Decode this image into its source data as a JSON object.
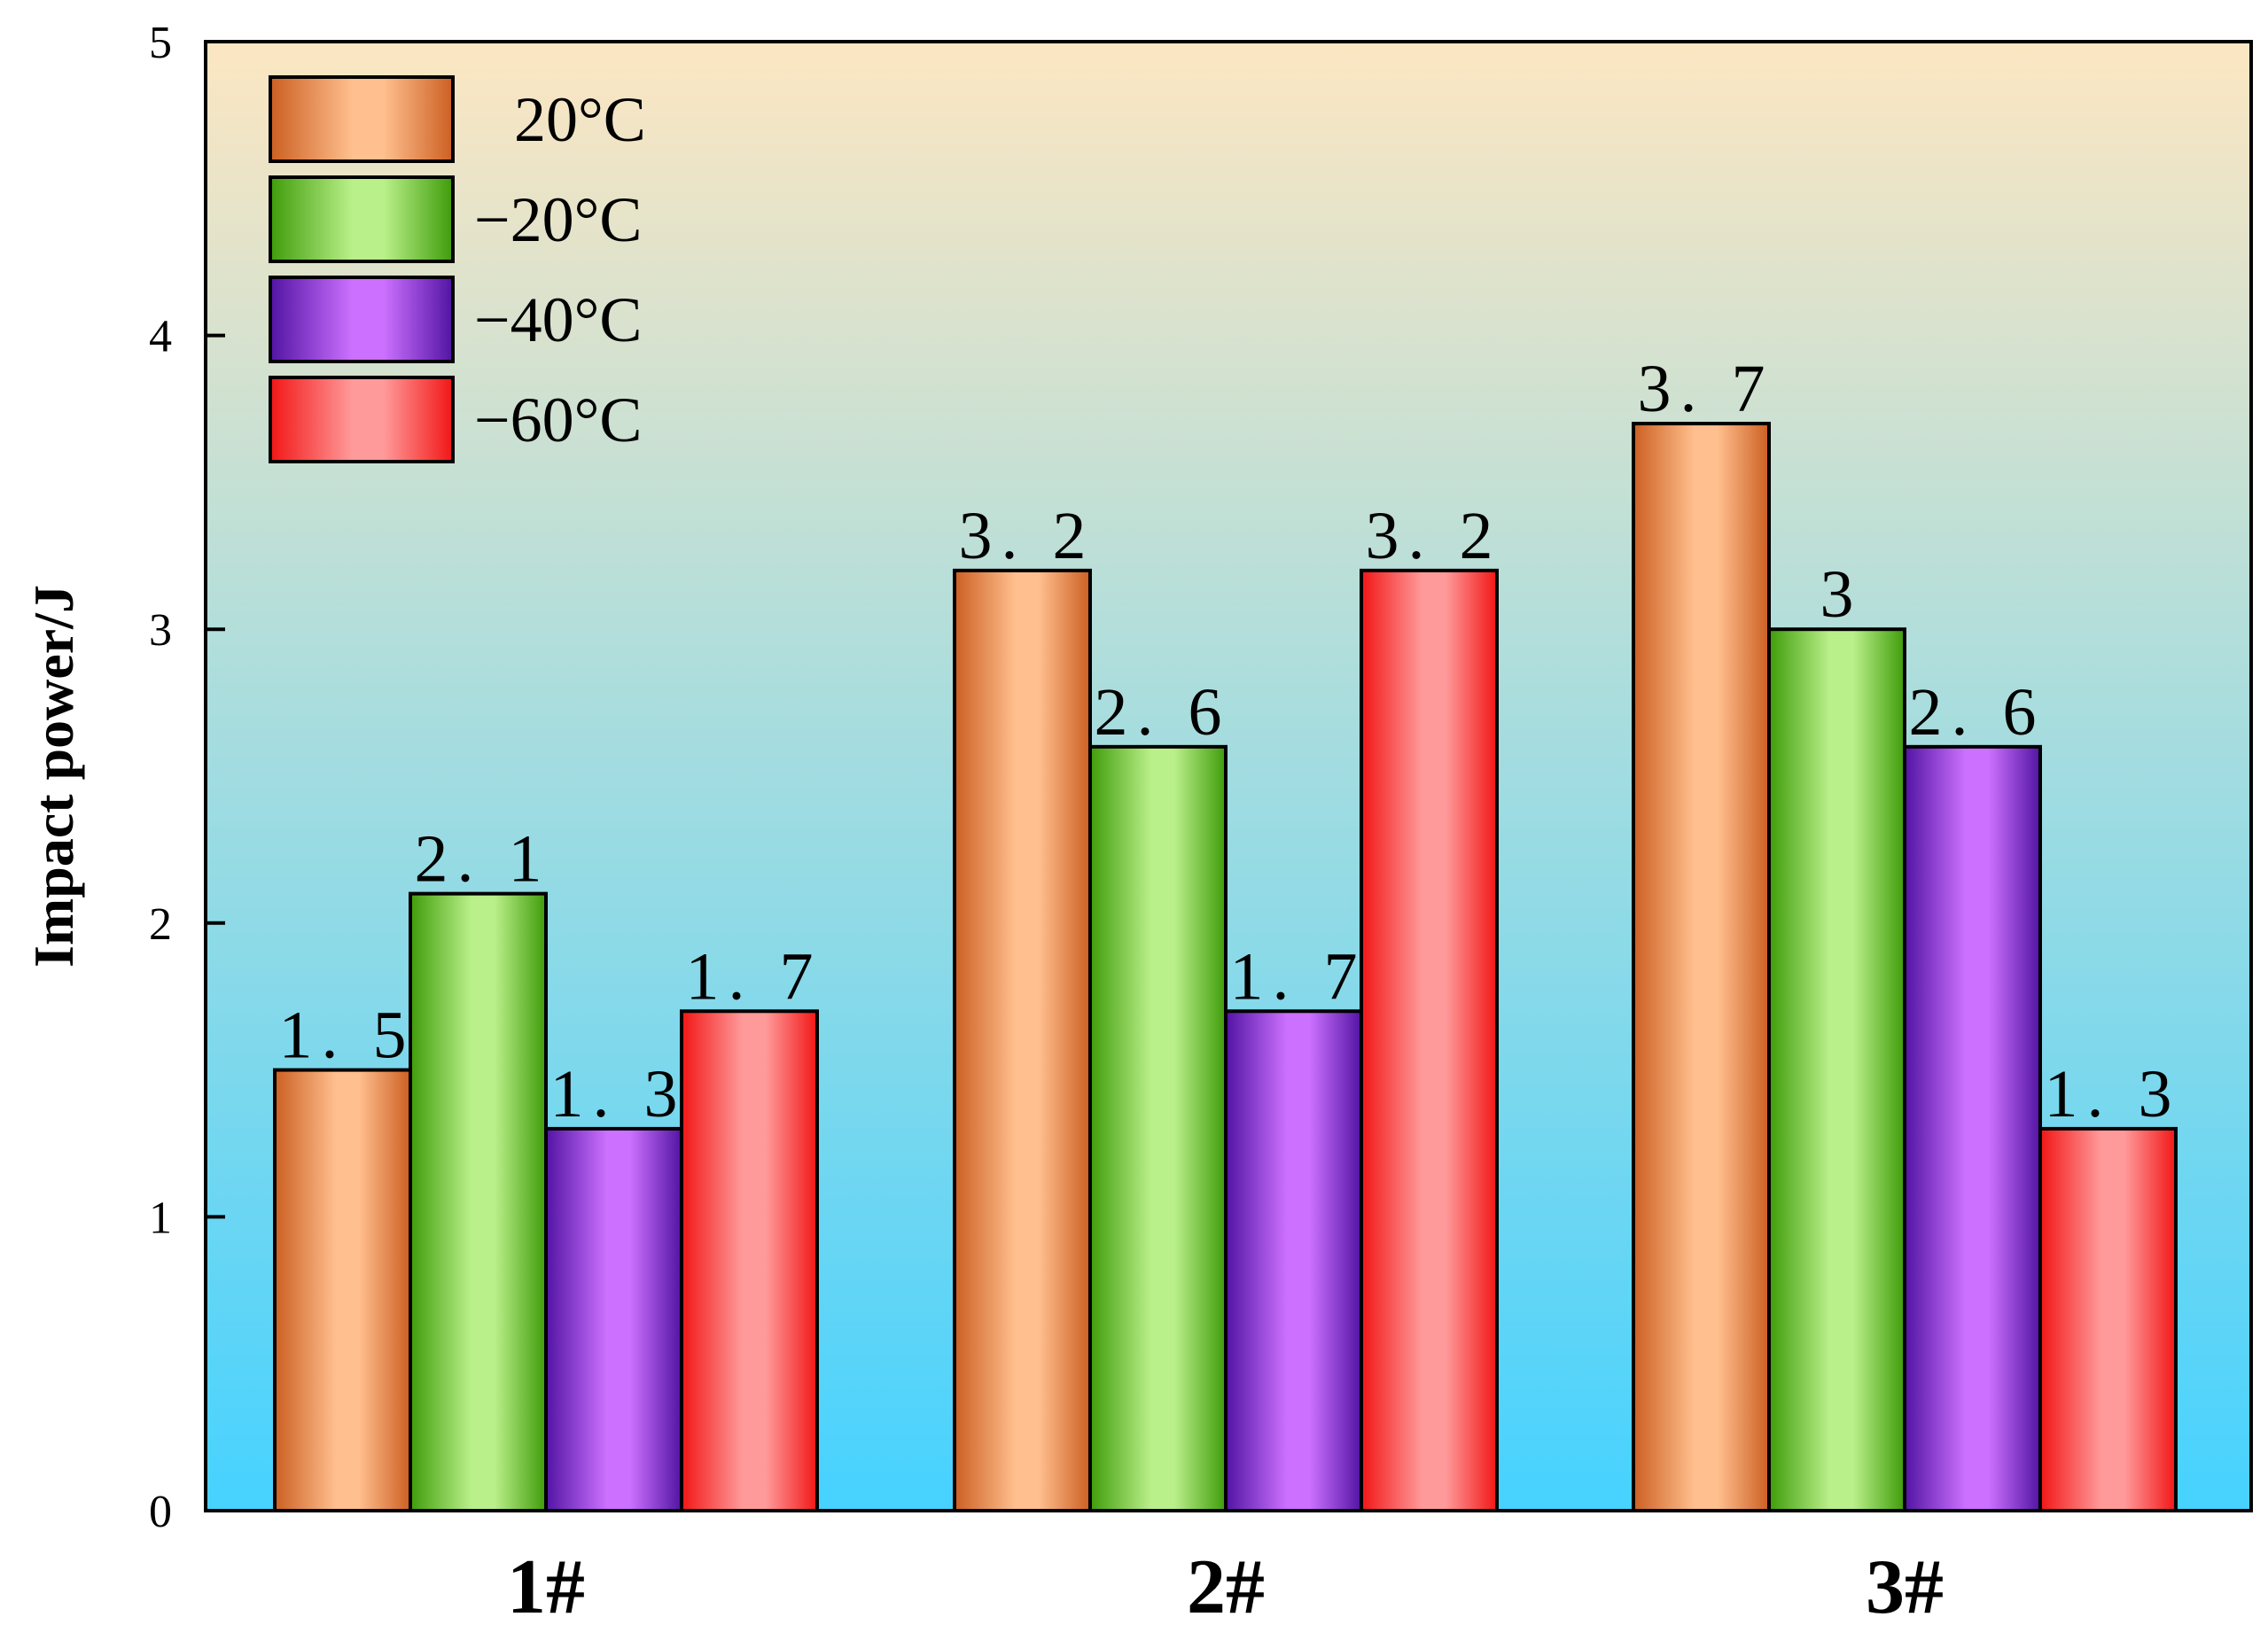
{
  "chart_data": {
    "type": "bar",
    "title": "",
    "xlabel": "",
    "ylabel": "Impact power/J",
    "categories": [
      "1#",
      "2#",
      "3#"
    ],
    "ylim": [
      0,
      5
    ],
    "yticks": [
      0,
      1,
      2,
      3,
      4,
      5
    ],
    "ytick_labels": [
      "0",
      "1",
      "2",
      "3",
      "4",
      "5"
    ],
    "legend_position": "top-left",
    "series": [
      {
        "name": "20°C",
        "values": [
          1.5,
          3.2,
          3.7
        ],
        "labels": [
          "1. 5",
          "3. 2",
          "3. 7"
        ],
        "colors": {
          "dark": "#cc5f22",
          "light": "#ffbf8e"
        }
      },
      {
        "name": "−20°C",
        "values": [
          2.1,
          2.6,
          3.0
        ],
        "labels": [
          "2. 1",
          "2. 6",
          "3"
        ],
        "colors": {
          "dark": "#3f9c0a",
          "light": "#baf08a"
        }
      },
      {
        "name": "−40°C",
        "values": [
          1.3,
          1.7,
          2.6
        ],
        "labels": [
          "1. 3",
          "1. 7",
          "2. 6"
        ],
        "colors": {
          "dark": "#5214a3",
          "light": "#cc70ff"
        }
      },
      {
        "name": "−60°C",
        "values": [
          1.7,
          3.2,
          1.3
        ],
        "labels": [
          "1. 7",
          "3. 2",
          "1. 3"
        ],
        "colors": {
          "dark": "#f21616",
          "light": "#ff9a9a"
        }
      }
    ],
    "background_gradient": {
      "top": "#fce6c2",
      "bottom": "#46d2ff"
    }
  }
}
